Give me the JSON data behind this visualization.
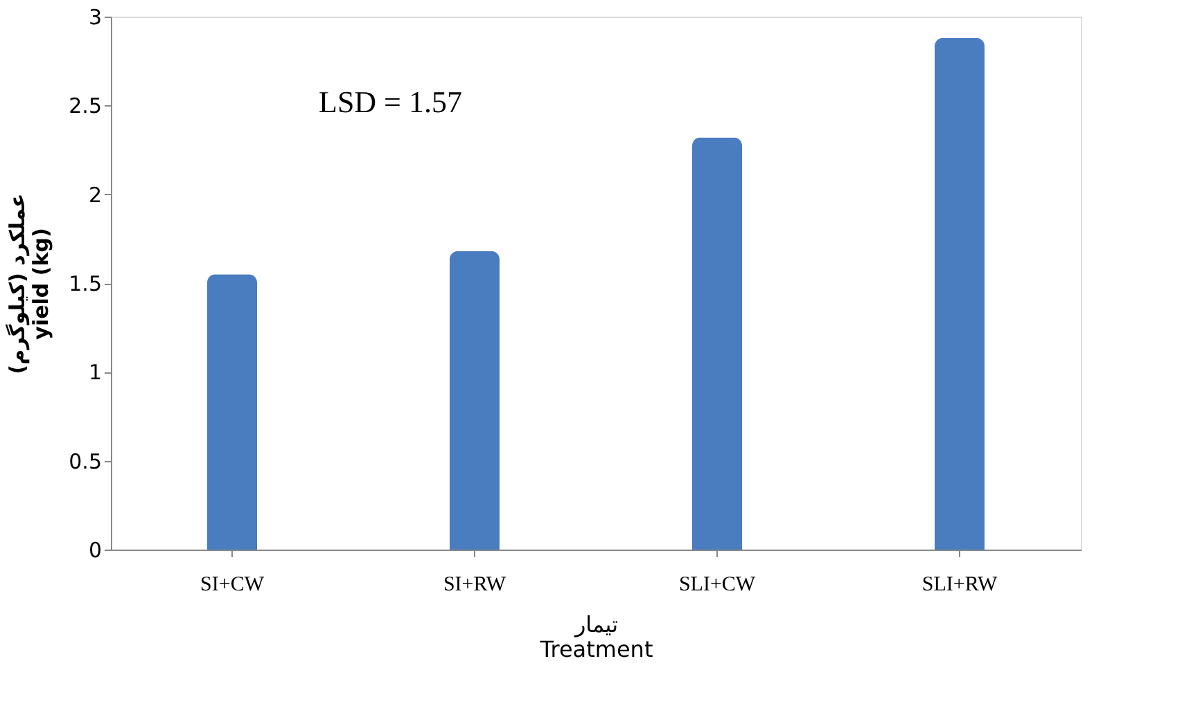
{
  "chart_data": {
    "type": "bar",
    "categories": [
      "SI+CW",
      "SI+RW",
      "SLI+CW",
      "SLI+RW"
    ],
    "values": [
      1.55,
      1.68,
      2.32,
      2.88
    ],
    "color": "#4a7cc0",
    "xlabel": "تیمار\nTreatment",
    "ylabel": "عملکرد (کیلوگرم)\nyield (kg)",
    "ylim": [
      0,
      3
    ],
    "yticks": [
      0,
      0.5,
      1,
      1.5,
      2,
      2.5,
      3
    ],
    "grid": false,
    "annotations": [
      "LSD = 1.57"
    ]
  }
}
